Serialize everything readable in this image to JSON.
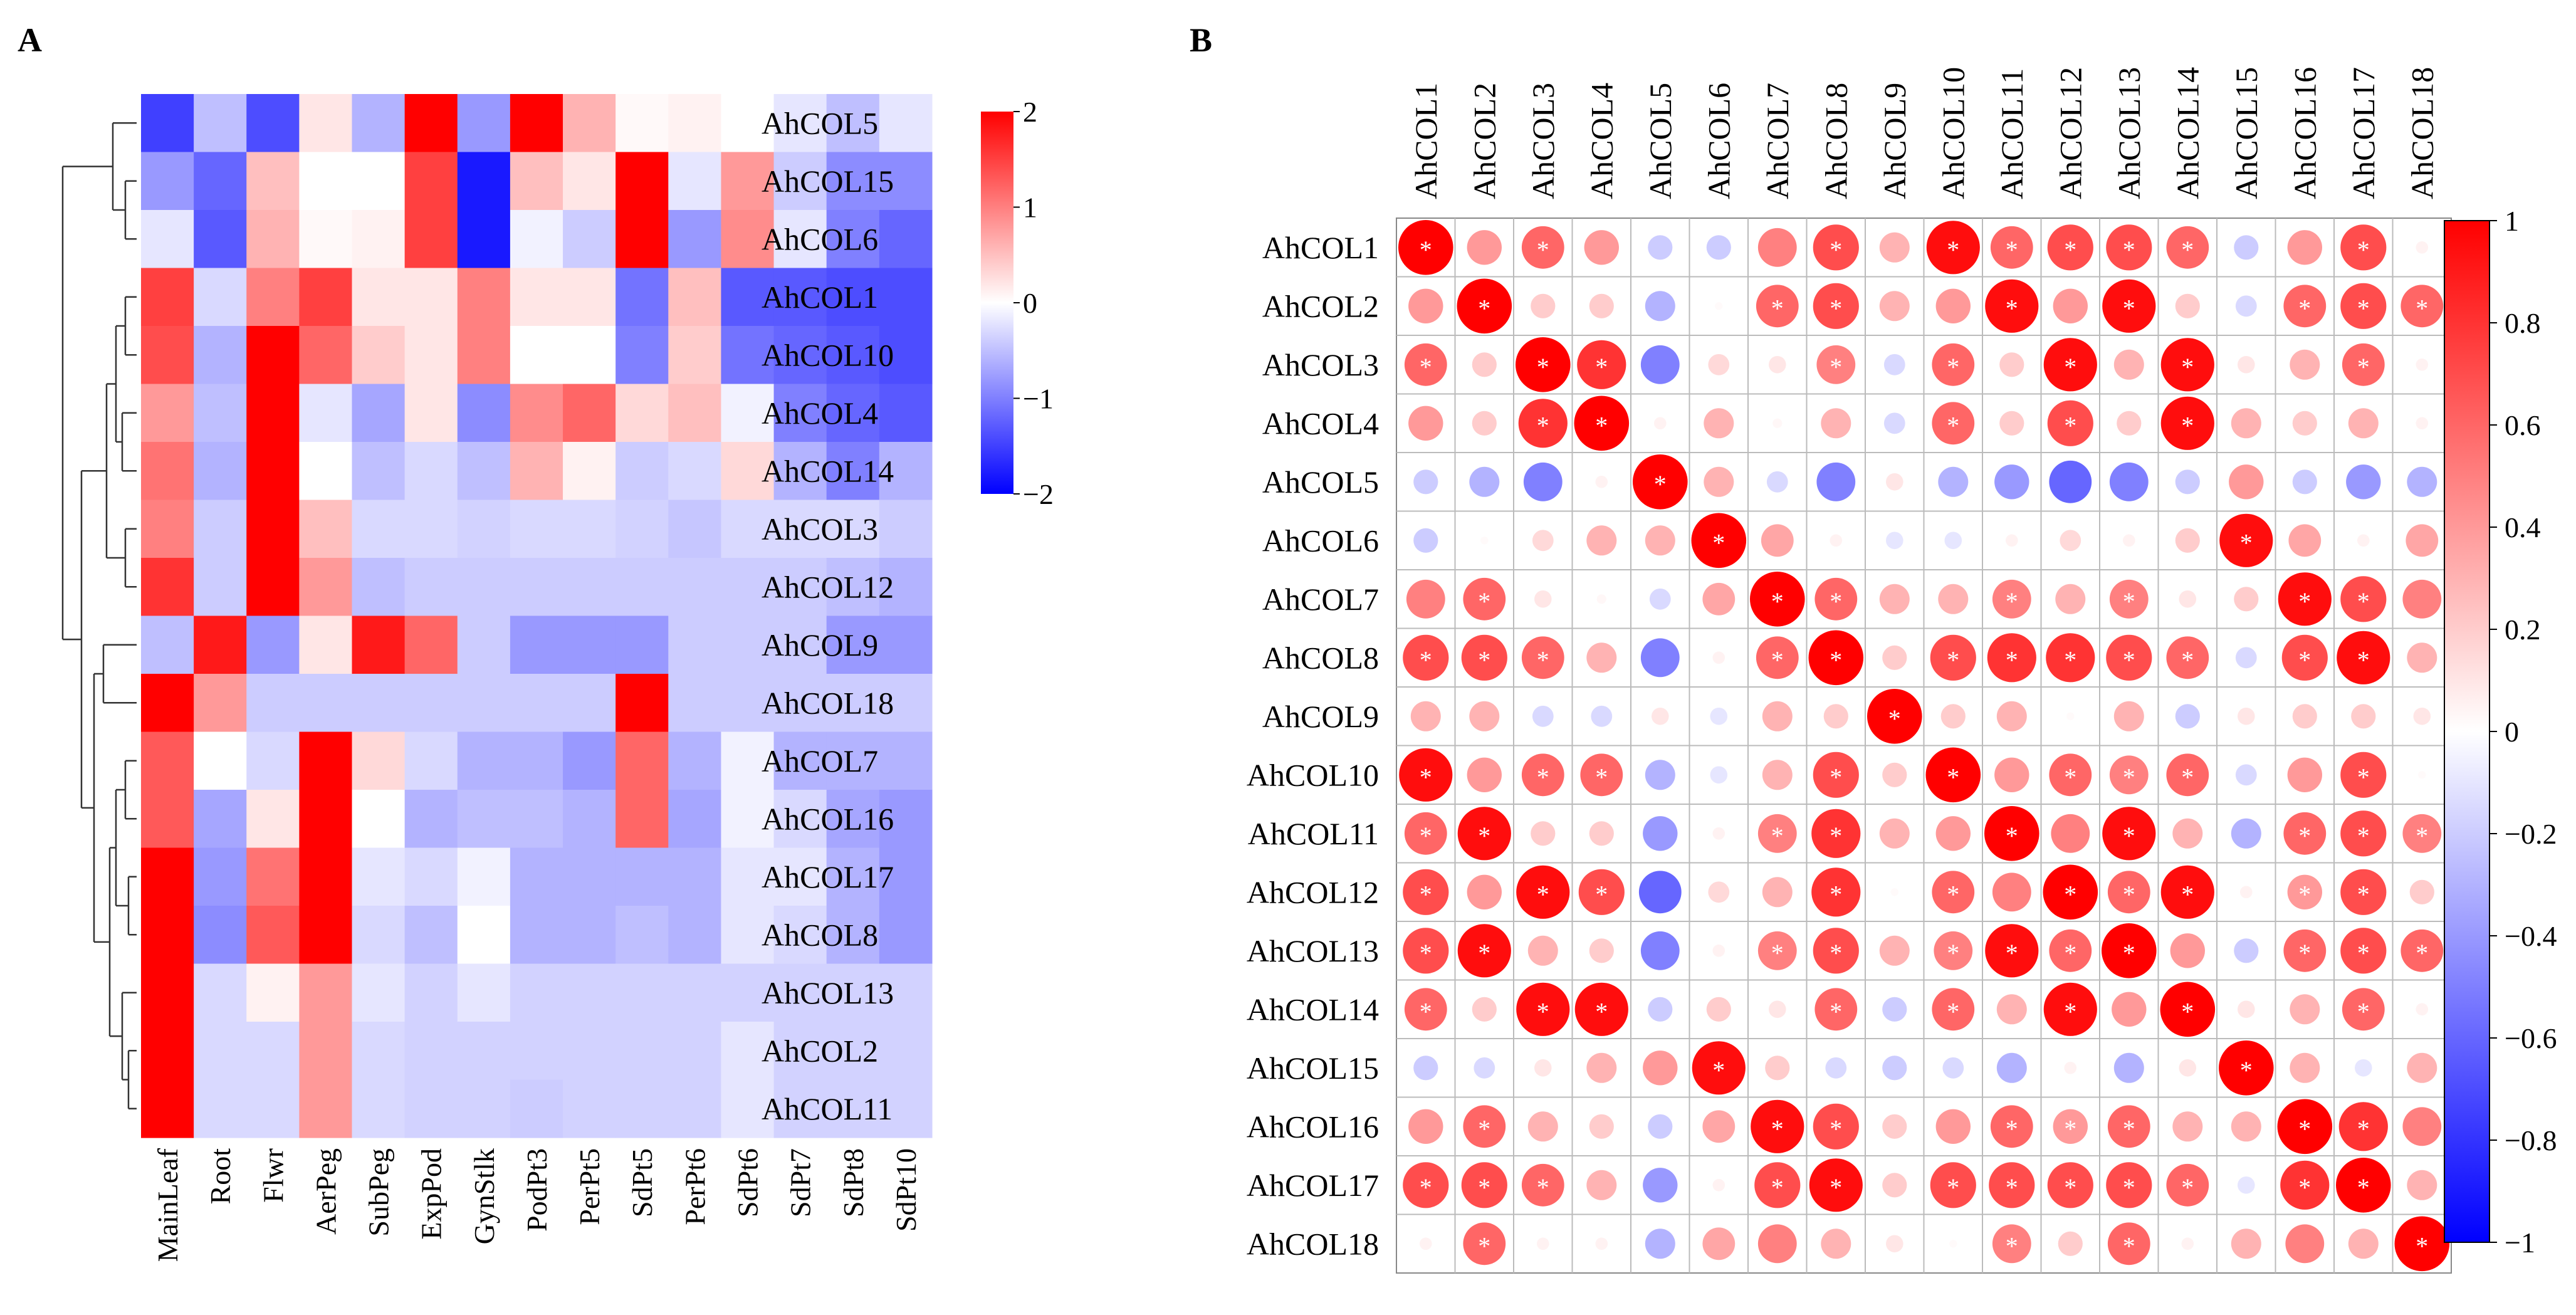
{
  "chart_data": [
    {
      "type": "heatmap",
      "panel_label": "A",
      "title": "",
      "columns": [
        "MainLeaf",
        "Root",
        "Flwr",
        "AerPeg",
        "SubPeg",
        "ExpPod",
        "GynStlk",
        "PodPt3",
        "PerPt5",
        "SdPt5",
        "PerPt6",
        "SdPt6",
        "SdPt7",
        "SdPt8",
        "SdPt10"
      ],
      "rows": [
        "AhCOL5",
        "AhCOL15",
        "AhCOL6",
        "AhCOL1",
        "AhCOL10",
        "AhCOL4",
        "AhCOL14",
        "AhCOL3",
        "AhCOL12",
        "AhCOL9",
        "AhCOL18",
        "AhCOL7",
        "AhCOL16",
        "AhCOL17",
        "AhCOL8",
        "AhCOL13",
        "AhCOL2",
        "AhCOL11"
      ],
      "values": [
        [
          -1.5,
          -0.5,
          -1.4,
          0.2,
          -0.6,
          2.0,
          -0.8,
          2.0,
          0.6,
          0.05,
          0.1,
          0.0,
          -0.2,
          -0.5,
          -0.2
        ],
        [
          -0.8,
          -1.2,
          0.5,
          0.0,
          0.0,
          1.5,
          -1.8,
          0.5,
          0.2,
          2.0,
          -0.2,
          0.8,
          -0.4,
          -0.9,
          -0.9
        ],
        [
          -0.2,
          -1.3,
          0.6,
          0.05,
          0.1,
          1.5,
          -1.8,
          -0.1,
          -0.4,
          2.0,
          -0.8,
          0.9,
          -0.2,
          -1.0,
          -1.2
        ],
        [
          1.5,
          -0.3,
          1.0,
          1.5,
          0.2,
          0.2,
          1.0,
          0.2,
          0.2,
          -1.1,
          0.5,
          -1.3,
          -1.3,
          -1.4,
          -1.4
        ],
        [
          1.4,
          -0.6,
          2.0,
          1.2,
          0.4,
          0.2,
          1.0,
          0.0,
          0.0,
          -1.0,
          0.4,
          -1.1,
          -1.2,
          -1.3,
          -1.4
        ],
        [
          0.8,
          -0.5,
          2.0,
          -0.2,
          -0.7,
          0.2,
          -0.9,
          0.9,
          1.2,
          0.3,
          0.5,
          -0.1,
          -1.0,
          -1.2,
          -1.3
        ],
        [
          1.1,
          -0.6,
          2.0,
          0.0,
          -0.5,
          -0.3,
          -0.5,
          0.6,
          0.1,
          -0.4,
          -0.3,
          0.3,
          -0.6,
          -1.0,
          -0.6
        ],
        [
          1.0,
          -0.4,
          2.0,
          0.5,
          -0.3,
          -0.3,
          -0.35,
          -0.3,
          -0.3,
          -0.35,
          -0.45,
          -0.3,
          -0.3,
          -0.3,
          -0.4
        ],
        [
          1.6,
          -0.4,
          2.0,
          0.8,
          -0.5,
          -0.4,
          -0.4,
          -0.4,
          -0.4,
          -0.4,
          -0.4,
          -0.4,
          -0.4,
          -0.5,
          -0.6
        ],
        [
          -0.5,
          1.8,
          -0.8,
          0.2,
          1.8,
          1.2,
          -0.4,
          -0.8,
          -0.8,
          -0.8,
          -0.4,
          -0.4,
          -0.4,
          -0.8,
          -0.8
        ],
        [
          2.0,
          0.8,
          -0.4,
          -0.4,
          -0.4,
          -0.4,
          -0.4,
          -0.4,
          -0.4,
          2.0,
          -0.4,
          -0.4,
          -0.4,
          -0.4,
          -0.4
        ],
        [
          1.3,
          0.0,
          -0.3,
          2.0,
          0.3,
          -0.3,
          -0.6,
          -0.6,
          -0.8,
          1.2,
          -0.6,
          -0.1,
          -0.6,
          -0.6,
          -0.6
        ],
        [
          1.3,
          -0.7,
          0.2,
          2.0,
          0.0,
          -0.6,
          -0.5,
          -0.5,
          -0.6,
          1.2,
          -0.7,
          -0.1,
          -0.3,
          -0.7,
          -0.8
        ],
        [
          2.0,
          -0.8,
          1.1,
          2.0,
          -0.2,
          -0.3,
          -0.1,
          -0.6,
          -0.6,
          -0.6,
          -0.6,
          -0.2,
          -0.2,
          -0.6,
          -0.8
        ],
        [
          2.0,
          -0.9,
          1.3,
          2.0,
          -0.3,
          -0.5,
          0.0,
          -0.6,
          -0.6,
          -0.5,
          -0.6,
          -0.2,
          -0.3,
          -0.6,
          -0.8
        ],
        [
          2.0,
          -0.3,
          0.1,
          0.8,
          -0.2,
          -0.35,
          -0.2,
          -0.35,
          -0.35,
          -0.35,
          -0.35,
          -0.35,
          -0.35,
          -0.35,
          -0.35
        ],
        [
          2.0,
          -0.3,
          -0.3,
          0.8,
          -0.3,
          -0.35,
          -0.35,
          -0.35,
          -0.35,
          -0.35,
          -0.35,
          -0.2,
          -0.35,
          -0.35,
          -0.35
        ],
        [
          2.0,
          -0.3,
          -0.3,
          0.8,
          -0.3,
          -0.35,
          -0.35,
          -0.4,
          -0.35,
          -0.35,
          -0.35,
          -0.2,
          -0.35,
          -0.35,
          -0.35
        ]
      ],
      "colorbar": {
        "min": -2,
        "max": 2,
        "ticks": [
          "2",
          "1",
          "0",
          "−1",
          "−2"
        ],
        "colors": [
          "#0000ff",
          "#ffffff",
          "#ff0000"
        ]
      },
      "dendrogram": {
        "side": "left",
        "leaf_order": [
          "AhCOL5",
          "AhCOL15",
          "AhCOL6",
          "AhCOL1",
          "AhCOL10",
          "AhCOL4",
          "AhCOL14",
          "AhCOL3",
          "AhCOL12",
          "AhCOL9",
          "AhCOL18",
          "AhCOL7",
          "AhCOL16",
          "AhCOL17",
          "AhCOL8",
          "AhCOL13",
          "AhCOL2",
          "AhCOL11"
        ]
      }
    },
    {
      "type": "correlation-matrix",
      "panel_label": "B",
      "title": "",
      "labels": [
        "AhCOL1",
        "AhCOL2",
        "AhCOL3",
        "AhCOL4",
        "AhCOL5",
        "AhCOL6",
        "AhCOL7",
        "AhCOL8",
        "AhCOL9",
        "AhCOL10",
        "AhCOL11",
        "AhCOL12",
        "AhCOL13",
        "AhCOL14",
        "AhCOL15",
        "AhCOL16",
        "AhCOL17",
        "AhCOL18"
      ],
      "significance_marker": "*",
      "matrix": [
        [
          1,
          0.4,
          0.6,
          0.4,
          -0.2,
          -0.2,
          0.5,
          0.7,
          0.3,
          0.95,
          0.6,
          0.7,
          0.7,
          0.6,
          -0.2,
          0.4,
          0.7,
          0.05
        ],
        [
          0.4,
          1,
          0.2,
          0.2,
          -0.3,
          0.02,
          0.6,
          0.7,
          0.3,
          0.4,
          0.95,
          0.4,
          0.95,
          0.2,
          -0.15,
          0.6,
          0.7,
          0.6
        ],
        [
          0.6,
          0.2,
          1,
          0.8,
          -0.5,
          0.15,
          0.1,
          0.5,
          -0.15,
          0.6,
          0.2,
          0.95,
          0.3,
          0.95,
          0.1,
          0.3,
          0.6,
          0.05
        ],
        [
          0.4,
          0.2,
          0.8,
          1,
          0.05,
          0.3,
          0.03,
          0.3,
          -0.15,
          0.6,
          0.2,
          0.7,
          0.2,
          0.95,
          0.3,
          0.2,
          0.3,
          0.05
        ],
        [
          -0.2,
          -0.3,
          -0.5,
          0.05,
          1,
          0.3,
          -0.15,
          -0.5,
          0.1,
          -0.3,
          -0.4,
          -0.6,
          -0.5,
          -0.2,
          0.4,
          -0.2,
          -0.4,
          -0.3
        ],
        [
          -0.2,
          0.02,
          0.15,
          0.3,
          0.3,
          1,
          0.35,
          0.05,
          -0.1,
          -0.1,
          0.05,
          0.15,
          0.05,
          0.2,
          0.95,
          0.35,
          0.05,
          0.35
        ],
        [
          0.5,
          0.6,
          0.1,
          0.03,
          -0.15,
          0.35,
          1,
          0.6,
          0.3,
          0.3,
          0.5,
          0.3,
          0.5,
          0.1,
          0.2,
          0.95,
          0.7,
          0.5
        ],
        [
          0.7,
          0.7,
          0.6,
          0.3,
          -0.5,
          0.05,
          0.6,
          1,
          0.2,
          0.7,
          0.8,
          0.8,
          0.7,
          0.6,
          -0.15,
          0.7,
          0.95,
          0.3
        ],
        [
          0.3,
          0.3,
          -0.15,
          -0.15,
          0.1,
          -0.1,
          0.3,
          0.2,
          1,
          0.2,
          0.3,
          0.02,
          0.3,
          -0.2,
          0.1,
          0.2,
          0.2,
          0.1
        ],
        [
          0.95,
          0.4,
          0.6,
          0.6,
          -0.3,
          -0.1,
          0.3,
          0.7,
          0.2,
          1,
          0.4,
          0.6,
          0.5,
          0.6,
          -0.15,
          0.4,
          0.7,
          0.02
        ],
        [
          0.6,
          0.95,
          0.2,
          0.2,
          -0.4,
          0.05,
          0.5,
          0.8,
          0.3,
          0.4,
          1,
          0.5,
          0.95,
          0.3,
          -0.3,
          0.6,
          0.7,
          0.5
        ],
        [
          0.7,
          0.4,
          0.95,
          0.7,
          -0.6,
          0.15,
          0.3,
          0.8,
          0.02,
          0.6,
          0.5,
          1,
          0.6,
          0.95,
          0.05,
          0.4,
          0.7,
          0.2
        ],
        [
          0.7,
          0.95,
          0.3,
          0.2,
          -0.5,
          0.05,
          0.5,
          0.7,
          0.3,
          0.5,
          0.95,
          0.6,
          1,
          0.4,
          -0.2,
          0.6,
          0.7,
          0.6
        ],
        [
          0.6,
          0.2,
          0.95,
          0.95,
          -0.2,
          0.2,
          0.1,
          0.6,
          -0.2,
          0.6,
          0.3,
          0.95,
          0.4,
          1,
          0.1,
          0.3,
          0.6,
          0.05
        ],
        [
          -0.2,
          -0.15,
          0.1,
          0.3,
          0.4,
          0.95,
          0.2,
          -0.15,
          -0.2,
          -0.15,
          -0.3,
          0.05,
          -0.3,
          0.1,
          1,
          0.3,
          -0.1,
          0.3
        ],
        [
          0.4,
          0.6,
          0.3,
          0.2,
          -0.2,
          0.35,
          0.95,
          0.7,
          0.2,
          0.4,
          0.6,
          0.4,
          0.6,
          0.3,
          0.3,
          1,
          0.8,
          0.5
        ],
        [
          0.7,
          0.7,
          0.6,
          0.3,
          -0.4,
          0.05,
          0.7,
          0.95,
          0.2,
          0.7,
          0.7,
          0.7,
          0.7,
          0.6,
          -0.1,
          0.8,
          1,
          0.3
        ],
        [
          0.05,
          0.6,
          0.05,
          0.05,
          -0.3,
          0.35,
          0.5,
          0.3,
          0.1,
          0.02,
          0.5,
          0.2,
          0.6,
          0.05,
          0.3,
          0.5,
          0.3,
          1
        ]
      ],
      "significant_pairs": [
        [
          1,
          1
        ],
        [
          1,
          3
        ],
        [
          1,
          8
        ],
        [
          1,
          10
        ],
        [
          1,
          11
        ],
        [
          1,
          12
        ],
        [
          1,
          13
        ],
        [
          1,
          14
        ],
        [
          1,
          17
        ],
        [
          2,
          2
        ],
        [
          2,
          7
        ],
        [
          2,
          8
        ],
        [
          2,
          11
        ],
        [
          2,
          13
        ],
        [
          2,
          16
        ],
        [
          2,
          17
        ],
        [
          2,
          18
        ],
        [
          3,
          1
        ],
        [
          3,
          3
        ],
        [
          3,
          4
        ],
        [
          3,
          8
        ],
        [
          3,
          10
        ],
        [
          3,
          12
        ],
        [
          3,
          14
        ],
        [
          3,
          17
        ],
        [
          4,
          3
        ],
        [
          4,
          4
        ],
        [
          4,
          10
        ],
        [
          4,
          12
        ],
        [
          4,
          14
        ],
        [
          5,
          5
        ],
        [
          6,
          6
        ],
        [
          6,
          15
        ],
        [
          7,
          2
        ],
        [
          7,
          7
        ],
        [
          7,
          8
        ],
        [
          7,
          11
        ],
        [
          7,
          13
        ],
        [
          7,
          16
        ],
        [
          7,
          17
        ],
        [
          8,
          1
        ],
        [
          8,
          2
        ],
        [
          8,
          3
        ],
        [
          8,
          7
        ],
        [
          8,
          8
        ],
        [
          8,
          10
        ],
        [
          8,
          11
        ],
        [
          8,
          12
        ],
        [
          8,
          13
        ],
        [
          8,
          14
        ],
        [
          8,
          16
        ],
        [
          8,
          17
        ],
        [
          9,
          9
        ],
        [
          10,
          1
        ],
        [
          10,
          3
        ],
        [
          10,
          4
        ],
        [
          10,
          8
        ],
        [
          10,
          10
        ],
        [
          10,
          12
        ],
        [
          10,
          13
        ],
        [
          10,
          14
        ],
        [
          10,
          17
        ],
        [
          11,
          1
        ],
        [
          11,
          2
        ],
        [
          11,
          7
        ],
        [
          11,
          8
        ],
        [
          11,
          11
        ],
        [
          11,
          13
        ],
        [
          11,
          16
        ],
        [
          11,
          17
        ],
        [
          11,
          18
        ],
        [
          12,
          1
        ],
        [
          12,
          3
        ],
        [
          12,
          4
        ],
        [
          12,
          8
        ],
        [
          12,
          10
        ],
        [
          12,
          12
        ],
        [
          12,
          13
        ],
        [
          12,
          14
        ],
        [
          12,
          16
        ],
        [
          12,
          17
        ],
        [
          13,
          1
        ],
        [
          13,
          2
        ],
        [
          13,
          7
        ],
        [
          13,
          8
        ],
        [
          13,
          10
        ],
        [
          13,
          11
        ],
        [
          13,
          12
        ],
        [
          13,
          13
        ],
        [
          13,
          16
        ],
        [
          13,
          17
        ],
        [
          13,
          18
        ],
        [
          14,
          1
        ],
        [
          14,
          3
        ],
        [
          14,
          4
        ],
        [
          14,
          8
        ],
        [
          14,
          10
        ],
        [
          14,
          12
        ],
        [
          14,
          14
        ],
        [
          14,
          17
        ],
        [
          15,
          6
        ],
        [
          15,
          15
        ],
        [
          16,
          2
        ],
        [
          16,
          7
        ],
        [
          16,
          8
        ],
        [
          16,
          11
        ],
        [
          16,
          12
        ],
        [
          16,
          13
        ],
        [
          16,
          16
        ],
        [
          16,
          17
        ],
        [
          17,
          1
        ],
        [
          17,
          2
        ],
        [
          17,
          3
        ],
        [
          17,
          7
        ],
        [
          17,
          8
        ],
        [
          17,
          10
        ],
        [
          17,
          11
        ],
        [
          17,
          12
        ],
        [
          17,
          13
        ],
        [
          17,
          14
        ],
        [
          17,
          16
        ],
        [
          17,
          17
        ],
        [
          18,
          2
        ],
        [
          18,
          11
        ],
        [
          18,
          13
        ],
        [
          18,
          18
        ]
      ],
      "colorbar": {
        "min": -1,
        "max": 1,
        "ticks": [
          "1",
          "0.8",
          "0.6",
          "0.4",
          "0.2",
          "0",
          "−0.2",
          "−0.4",
          "−0.6",
          "−0.8",
          "−1"
        ],
        "colors": [
          "#0000ff",
          "#ffffff",
          "#ff0000"
        ]
      }
    }
  ]
}
